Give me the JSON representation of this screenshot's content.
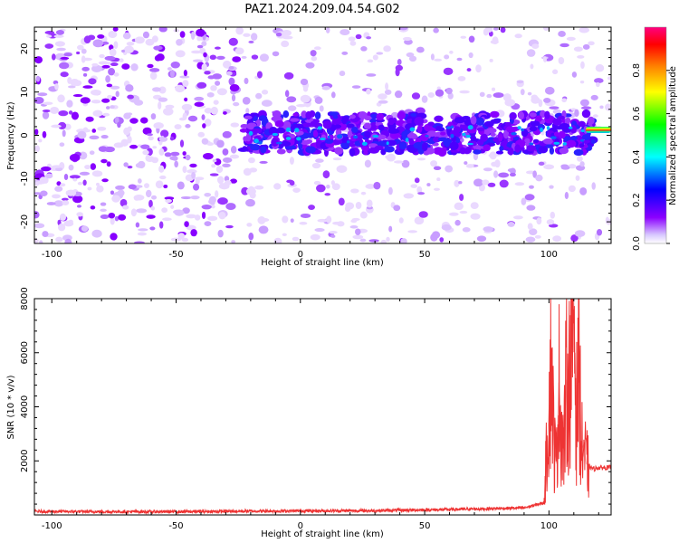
{
  "title": "PAZ1.2024.209.04.54.G02",
  "chart_data": [
    {
      "type": "heatmap",
      "xlabel": "Height of straight line (km)",
      "ylabel": "Frequency (Hz)",
      "xlim": [
        -107,
        125
      ],
      "ylim": [
        -25,
        25
      ],
      "xticks": [
        -100,
        -50,
        0,
        50,
        100
      ],
      "yticks": [
        -20,
        -10,
        0,
        10,
        20
      ],
      "colorbar": {
        "label": "Normalized spectral amplitude",
        "range": [
          0,
          1
        ],
        "ticks": [
          0.0,
          0.2,
          0.4,
          0.6,
          0.8
        ],
        "colormap": "gist_rainbow",
        "colors": [
          "#ffffff",
          "#8b00ff",
          "#0000ff",
          "#00ffff",
          "#00ff00",
          "#ffff00",
          "#ff8000",
          "#ff0000",
          "#ff0080"
        ]
      },
      "features": [
        {
          "description_of_signal": "scattered low amplitude noise across all heights",
          "x_range": [
            -107,
            125
          ],
          "y_range": [
            -25,
            25
          ],
          "amplitude": 0.1
        },
        {
          "description_of_signal": "band of enhanced amplitude near 0 Hz",
          "x_range": [
            -23,
            118
          ],
          "y_range": [
            -4,
            5
          ],
          "amplitude": 0.2
        },
        {
          "description_of_signal": "strong tone near 1 Hz",
          "x_range": [
            116,
            125
          ],
          "y": 1,
          "amplitude": 0.8
        }
      ]
    },
    {
      "type": "line",
      "xlabel": "Height of straight line (km)",
      "ylabel": "SNR (10 * v/v)",
      "xlim": [
        -107,
        125
      ],
      "ylim": [
        0,
        8000
      ],
      "xticks": [
        -100,
        -50,
        0,
        50,
        100
      ],
      "yticks": [
        2000,
        4000,
        6000,
        8000
      ],
      "color": "#ee3333",
      "x": [
        -107,
        -80,
        -50,
        -20,
        0,
        30,
        60,
        90,
        98,
        100,
        101,
        102,
        103,
        104,
        105,
        106,
        107,
        108,
        109,
        110,
        111,
        112,
        113,
        114,
        115,
        116,
        118,
        120,
        125
      ],
      "y": [
        130,
        120,
        120,
        140,
        150,
        160,
        200,
        260,
        450,
        3900,
        5800,
        2600,
        1900,
        4900,
        3300,
        2400,
        5000,
        4600,
        6600,
        8000,
        3400,
        6200,
        2400,
        2600,
        1900,
        1800,
        1700,
        1750,
        1750
      ]
    }
  ]
}
